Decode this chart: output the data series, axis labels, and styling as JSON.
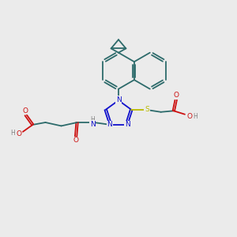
{
  "bg_color": "#ebebeb",
  "bond_color": "#2d6b6b",
  "bond_width": 1.3,
  "N_color": "#1010cc",
  "S_color": "#bbbb00",
  "O_color": "#cc1010",
  "H_color": "#808080",
  "figsize": [
    3.0,
    3.0
  ],
  "dpi": 100,
  "xlim": [
    0,
    10
  ],
  "ylim": [
    0,
    10
  ]
}
